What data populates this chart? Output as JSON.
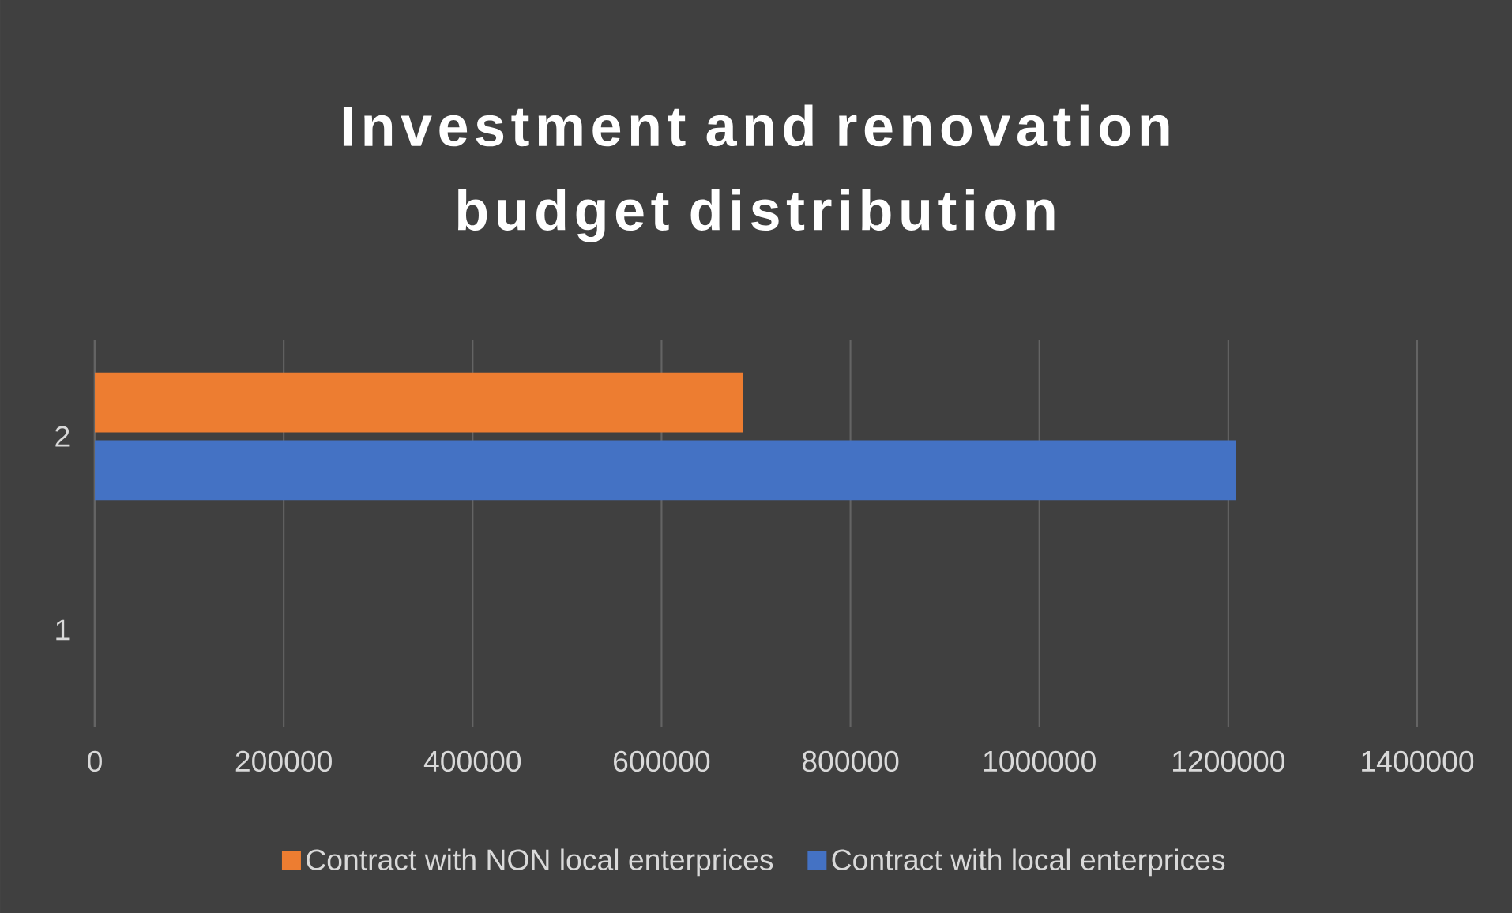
{
  "chart_data": {
    "type": "bar",
    "orientation": "horizontal",
    "title": "Investment and renovation budget distribution",
    "categories": [
      "2",
      "1"
    ],
    "series": [
      {
        "name": "Contract with NON local enterprices",
        "color": "#ed7d31",
        "values": [
          686000,
          null
        ]
      },
      {
        "name": "Contract with local enterprices",
        "color": "#4472c4",
        "values": [
          1208000,
          null
        ]
      }
    ],
    "xlim": [
      0,
      1400000
    ],
    "xticks": [
      0,
      200000,
      400000,
      600000,
      800000,
      1000000,
      1200000,
      1400000
    ],
    "grid": "x",
    "legend": "bottom"
  }
}
